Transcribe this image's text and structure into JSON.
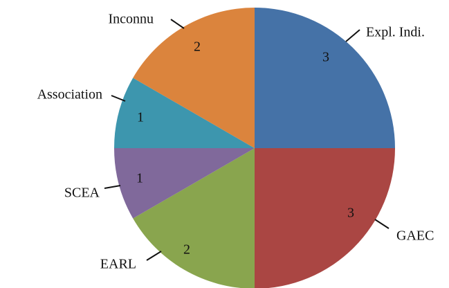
{
  "chart_data": {
    "type": "pie",
    "title": "",
    "categories": [
      "Expl. Indi.",
      "GAEC",
      "EARL",
      "SCEA",
      "Association",
      "Inconnu"
    ],
    "values": [
      3,
      3,
      2,
      1,
      1,
      2
    ],
    "colors": [
      "#4572A7",
      "#AA4643",
      "#89A54E",
      "#80699B",
      "#3D96AE",
      "#DB843D"
    ],
    "start_angle_deg": 0,
    "direction": "clockwise",
    "legend": "none",
    "data_labels": "inside",
    "category_labels": "outside-with-leader-lines"
  }
}
